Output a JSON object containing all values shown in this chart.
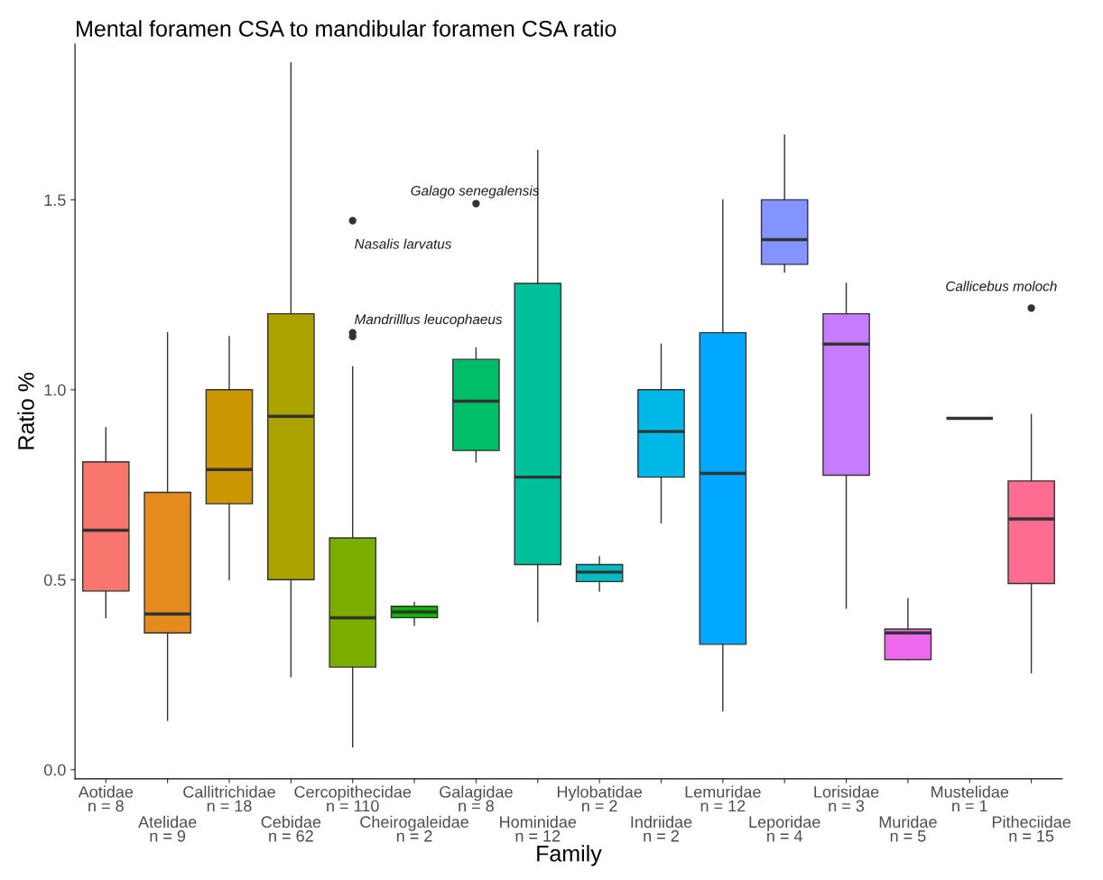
{
  "chart_data": {
    "type": "box",
    "title": "Mental foramen CSA to mandibular foramen CSA ratio",
    "xlabel": "Family",
    "ylabel": "Ratio %",
    "categories": [
      "Aotidae\nn = 8",
      "Atelidae\nn = 9",
      "Callitrichidae\nn = 18",
      "Cebidae\nn = 62",
      "Cercopithecidae\nn = 110",
      "Cheirogaleidae\nn = 2",
      "Galagidae\nn = 8",
      "Hominidae\nn = 12",
      "Hylobatidae\nn = 2",
      "Indriidae\nn = 2",
      "Lemuridae\nn = 12",
      "Leporidae\nn = 4",
      "Lorisidae\nn = 3",
      "Muridae\nn = 5",
      "Mustelidae\nn = 1",
      "Pitheciidae\nn = 15"
    ],
    "colors": [
      "#f8766d",
      "#e58a1c",
      "#cc9600",
      "#aba300",
      "#7cae00",
      "#0cb702",
      "#00be67",
      "#00c09a",
      "#00bcc0",
      "#00b8e7",
      "#00a9ff",
      "#8494ff",
      "#c77cff",
      "#ed68ed",
      "#333333",
      "#ff6c91"
    ],
    "boxes": [
      {
        "low": 0.4,
        "q1": 0.47,
        "median": 0.63,
        "q3": 0.81,
        "high": 0.9
      },
      {
        "low": 0.13,
        "q1": 0.36,
        "median": 0.41,
        "q3": 0.73,
        "high": 1.15
      },
      {
        "low": 0.5,
        "q1": 0.7,
        "median": 0.79,
        "q3": 1.0,
        "high": 1.14
      },
      {
        "low": 0.245,
        "q1": 0.5,
        "median": 0.93,
        "q3": 1.2,
        "high": 1.86
      },
      {
        "low": 0.06,
        "q1": 0.27,
        "median": 0.4,
        "q3": 0.61,
        "high": 1.06,
        "outliers": [
          1.14,
          1.15,
          1.445
        ]
      },
      {
        "low": 0.38,
        "q1": 0.4,
        "median": 0.415,
        "q3": 0.43,
        "high": 0.44
      },
      {
        "low": 0.81,
        "q1": 0.84,
        "median": 0.97,
        "q3": 1.08,
        "high": 1.11,
        "outliers": [
          1.49
        ]
      },
      {
        "low": 0.39,
        "q1": 0.54,
        "median": 0.77,
        "q3": 1.28,
        "high": 1.63
      },
      {
        "low": 0.47,
        "q1": 0.495,
        "median": 0.52,
        "q3": 0.54,
        "high": 0.56
      },
      {
        "low": 0.65,
        "q1": 0.77,
        "median": 0.89,
        "q3": 1.0,
        "high": 1.12
      },
      {
        "low": 0.155,
        "q1": 0.33,
        "median": 0.78,
        "q3": 1.15,
        "high": 1.5
      },
      {
        "low": 1.31,
        "q1": 1.33,
        "median": 1.395,
        "q3": 1.5,
        "high": 1.67
      },
      {
        "low": 0.425,
        "q1": 0.775,
        "median": 1.12,
        "q3": 1.2,
        "high": 1.28
      },
      {
        "low": 0.29,
        "q1": 0.29,
        "median": 0.36,
        "q3": 0.37,
        "high": 0.45
      },
      {
        "low": 0.925,
        "q1": 0.925,
        "median": 0.925,
        "q3": 0.925,
        "high": 0.925
      },
      {
        "low": 0.255,
        "q1": 0.49,
        "median": 0.66,
        "q3": 0.76,
        "high": 0.935,
        "outliers": [
          1.215
        ]
      }
    ],
    "ylim": [
      -0.024,
      1.91
    ],
    "yticks": [
      {
        "value": 0,
        "label": "0.0"
      },
      0.5,
      {
        "value": 1,
        "label": "1.0"
      },
      1.5
    ],
    "annotations": [
      "Nasalis larvatus",
      "Mandrilllus leucophaeus",
      "Galago senegalensis",
      "Callicebus moloch"
    ],
    "grid": false,
    "legend": false
  }
}
